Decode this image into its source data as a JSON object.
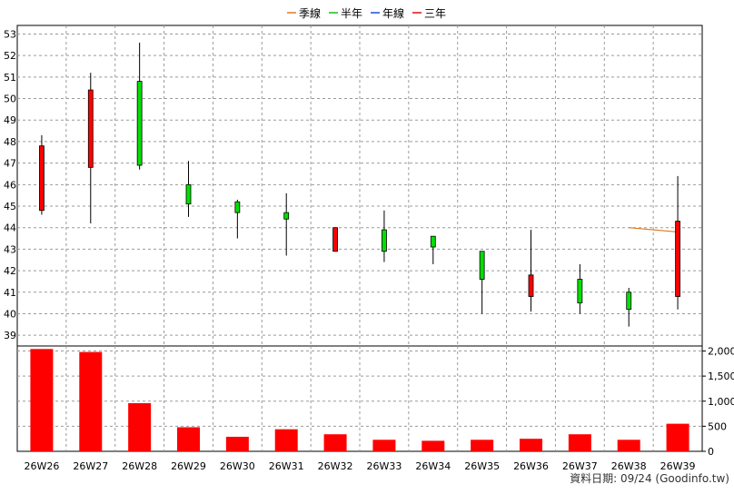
{
  "legend": [
    {
      "label": "季線",
      "color": "#e07a1f"
    },
    {
      "label": "半年",
      "color": "#16c116"
    },
    {
      "label": "年線",
      "color": "#1d4fd8"
    },
    {
      "label": "三年",
      "color": "#e01010"
    }
  ],
  "footer": {
    "source": "資料日期: 09/24  (Goodinfo.tw)"
  },
  "colors": {
    "up": "#ff0000",
    "down": "#00e000",
    "volume": "#ff0000",
    "ma_quarter": "#e07a1f"
  },
  "chart_data": [
    {
      "type": "candlestick",
      "categories": [
        "26W26",
        "26W27",
        "26W28",
        "26W29",
        "26W30",
        "26W31",
        "26W32",
        "26W33",
        "26W34",
        "26W35",
        "26W36",
        "26W37",
        "26W38",
        "26W39"
      ],
      "ohlc": [
        {
          "open": 44.8,
          "high": 48.3,
          "low": 44.6,
          "close": 47.8,
          "dir": "up"
        },
        {
          "open": 46.8,
          "high": 51.2,
          "low": 44.2,
          "close": 50.4,
          "dir": "up"
        },
        {
          "open": 50.8,
          "high": 52.6,
          "low": 46.7,
          "close": 46.9,
          "dir": "down"
        },
        {
          "open": 46.0,
          "high": 47.1,
          "low": 44.5,
          "close": 45.1,
          "dir": "down"
        },
        {
          "open": 45.2,
          "high": 45.3,
          "low": 43.5,
          "close": 44.7,
          "dir": "down"
        },
        {
          "open": 44.7,
          "high": 45.6,
          "low": 42.7,
          "close": 44.4,
          "dir": "down"
        },
        {
          "open": 42.9,
          "high": 44.0,
          "low": 42.9,
          "close": 44.0,
          "dir": "up"
        },
        {
          "open": 43.9,
          "high": 44.8,
          "low": 42.4,
          "close": 42.9,
          "dir": "down"
        },
        {
          "open": 43.6,
          "high": 43.6,
          "low": 42.3,
          "close": 43.1,
          "dir": "down"
        },
        {
          "open": 42.9,
          "high": 42.9,
          "low": 40.0,
          "close": 41.6,
          "dir": "down"
        },
        {
          "open": 40.8,
          "high": 43.9,
          "low": 40.1,
          "close": 41.8,
          "dir": "up"
        },
        {
          "open": 41.6,
          "high": 42.3,
          "low": 40.0,
          "close": 40.5,
          "dir": "down"
        },
        {
          "open": 41.0,
          "high": 41.2,
          "low": 39.4,
          "close": 40.2,
          "dir": "down"
        },
        {
          "open": 40.8,
          "high": 46.4,
          "low": 40.2,
          "close": 44.3,
          "dir": "up"
        }
      ],
      "ma_quarter": [
        null,
        null,
        null,
        null,
        null,
        null,
        null,
        null,
        null,
        null,
        null,
        null,
        44.0,
        43.8
      ],
      "y_ticks": [
        39,
        40,
        41,
        42,
        43,
        44,
        45,
        46,
        47,
        48,
        49,
        50,
        51,
        52,
        53
      ],
      "ylim": [
        38.5,
        53.4
      ],
      "grid": true,
      "legend_position": "top-center"
    },
    {
      "type": "bar",
      "categories": [
        "26W26",
        "26W27",
        "26W28",
        "26W29",
        "26W30",
        "26W31",
        "26W32",
        "26W33",
        "26W34",
        "26W35",
        "26W36",
        "26W37",
        "26W38",
        "26W39"
      ],
      "values": [
        2040,
        1980,
        960,
        480,
        290,
        440,
        340,
        230,
        210,
        230,
        250,
        340,
        230,
        550
      ],
      "y_ticks": [
        "0",
        "500",
        "1,000",
        "1,500",
        "2,000"
      ],
      "y_tick_values": [
        0,
        500,
        1000,
        1500,
        2000
      ],
      "ylim": [
        0,
        2100
      ],
      "grid": true
    }
  ]
}
